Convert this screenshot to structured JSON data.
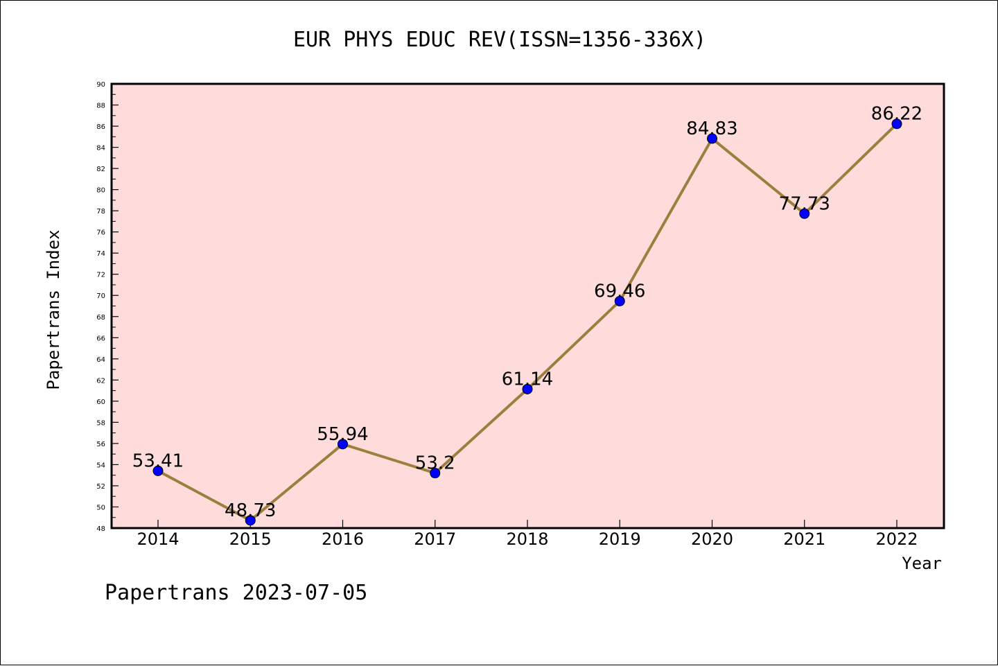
{
  "chart_data": {
    "type": "line",
    "title": "EUR PHYS EDUC REV(ISSN=1356-336X)",
    "xlabel": "Year",
    "ylabel": "Papertrans Index",
    "categories": [
      "2014",
      "2015",
      "2016",
      "2017",
      "2018",
      "2019",
      "2020",
      "2021",
      "2022"
    ],
    "series": [
      {
        "values": [
          53.41,
          48.73,
          55.94,
          53.2,
          61.14,
          69.46,
          84.83,
          77.73,
          86.22
        ],
        "labels": [
          "53.41",
          "48.73",
          "55.94",
          "53.2",
          "61.14",
          "69.46",
          "84.83",
          "77.73",
          "86.22"
        ]
      }
    ],
    "ylim": [
      48,
      90
    ],
    "ytick_step": 2,
    "grid": false,
    "colors": {
      "plot_background": "#ffdcdc",
      "line": "#9c7f3c",
      "marker": "#0000ff"
    }
  },
  "footer": {
    "text": "Papertrans 2023-07-05"
  }
}
